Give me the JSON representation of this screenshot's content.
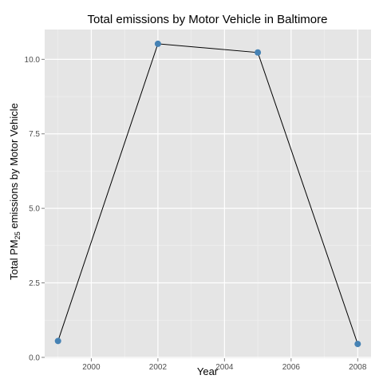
{
  "chart_data": {
    "type": "line",
    "title": "Total emissions by Motor Vehicle in Baltimore",
    "xlabel": "Year",
    "ylabel": {
      "prefix": "Total PM",
      "subscript": "25",
      "suffix": " emissions by Motor Vehicle"
    },
    "x": [
      1999,
      2002,
      2005,
      2008
    ],
    "values": [
      0.55,
      10.52,
      10.23,
      0.45
    ],
    "xlim": [
      1998.6,
      2008.4
    ],
    "ylim": [
      -0.03,
      11.0
    ],
    "xticks": [
      2000,
      2002,
      2004,
      2006,
      2008
    ],
    "yticks": [
      0.0,
      2.5,
      5.0,
      7.5,
      10.0
    ],
    "ytick_labels": [
      "0.0",
      "2.5",
      "5.0",
      "7.5",
      "10.0"
    ],
    "grid": true,
    "colors": {
      "panel": "#e5e5e5",
      "grid_major": "#ffffff",
      "grid_minor": "#f2f2f2",
      "line": "#000000",
      "point": "#4682b4"
    }
  }
}
